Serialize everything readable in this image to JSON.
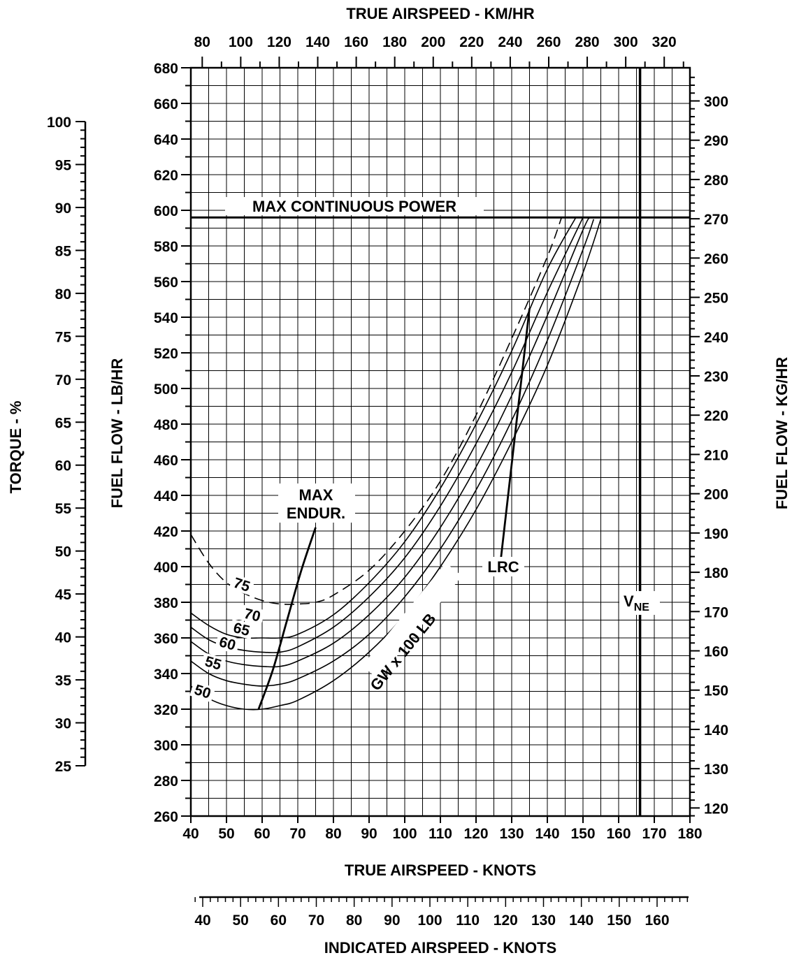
{
  "chart_data": {
    "type": "line",
    "title": "",
    "xlabel": "TRUE AIRSPEED - KNOTS",
    "ylabel": "FUEL FLOW - LB/HR",
    "xlim": [
      40,
      180
    ],
    "ylim": [
      260,
      680
    ],
    "grid": true,
    "x_ticks": [
      40,
      50,
      60,
      70,
      80,
      90,
      100,
      110,
      120,
      130,
      140,
      150,
      160,
      170,
      180
    ],
    "y_ticks": [
      260,
      280,
      300,
      320,
      340,
      360,
      380,
      400,
      420,
      440,
      460,
      480,
      500,
      520,
      540,
      560,
      580,
      600,
      620,
      640,
      660,
      680
    ],
    "top_axis": {
      "label": "TRUE AIRSPEED - KM/HR",
      "ticks": [
        80,
        100,
        120,
        140,
        160,
        180,
        200,
        220,
        240,
        260,
        280,
        300,
        320
      ]
    },
    "right_axis": {
      "label": "FUEL FLOW - KG/HR",
      "ticks": [
        120,
        130,
        140,
        150,
        160,
        170,
        180,
        190,
        200,
        210,
        220,
        230,
        240,
        250,
        260,
        270,
        280,
        290,
        300
      ]
    },
    "left_axis": {
      "label": "TORQUE - %",
      "ticks": [
        25,
        30,
        35,
        40,
        45,
        50,
        55,
        60,
        65,
        70,
        75,
        80,
        85,
        90,
        95,
        100
      ]
    },
    "bottom_axis": {
      "label": "INDICATED AIRSPEED - KNOTS",
      "ticks": [
        40,
        50,
        60,
        70,
        80,
        90,
        100,
        110,
        120,
        130,
        140,
        150,
        160
      ]
    },
    "series": [
      {
        "name": "50",
        "style": "solid",
        "x": [
          40,
          45,
          50,
          55,
          60,
          65,
          70,
          80,
          90,
          100,
          110,
          120,
          130,
          140,
          150,
          155
        ],
        "y": [
          333,
          326,
          322,
          320,
          320,
          322,
          325,
          336,
          352,
          373,
          400,
          432,
          470,
          513,
          565,
          595
        ]
      },
      {
        "name": "55",
        "style": "solid",
        "x": [
          40,
          45,
          50,
          55,
          60,
          65,
          70,
          80,
          90,
          100,
          110,
          120,
          130,
          140,
          150,
          153
        ],
        "y": [
          347,
          340,
          336,
          334,
          333,
          334,
          337,
          347,
          362,
          383,
          410,
          443,
          482,
          527,
          578,
          595
        ]
      },
      {
        "name": "60",
        "style": "solid",
        "x": [
          40,
          45,
          50,
          55,
          60,
          65,
          70,
          80,
          90,
          100,
          110,
          120,
          130,
          140,
          150,
          152
        ],
        "y": [
          358,
          351,
          347,
          345,
          344,
          344,
          347,
          357,
          373,
          394,
          422,
          456,
          496,
          541,
          589,
          596
        ]
      },
      {
        "name": "65",
        "style": "solid",
        "x": [
          40,
          45,
          50,
          55,
          60,
          65,
          70,
          80,
          90,
          100,
          110,
          120,
          130,
          140,
          150
        ],
        "y": [
          366,
          359,
          355,
          353,
          352,
          352,
          355,
          366,
          383,
          405,
          434,
          469,
          509,
          554,
          596
        ]
      },
      {
        "name": "70",
        "style": "solid",
        "x": [
          40,
          45,
          50,
          55,
          60,
          65,
          70,
          80,
          90,
          100,
          110,
          120,
          130,
          140,
          148
        ],
        "y": [
          374,
          367,
          362,
          360,
          360,
          360,
          362,
          373,
          391,
          414,
          444,
          480,
          521,
          567,
          596
        ]
      },
      {
        "name": "75",
        "style": "dashed",
        "x": [
          40,
          45,
          50,
          55,
          60,
          65,
          70,
          75,
          80,
          90,
          100,
          110,
          120,
          130,
          140,
          144
        ],
        "y": [
          418,
          402,
          391,
          385,
          381,
          379,
          379,
          380,
          384,
          398,
          420,
          448,
          485,
          528,
          574,
          596
        ]
      }
    ],
    "reference_lines": [
      {
        "label": "MAX CONTINUOUS POWER",
        "orientation": "horizontal",
        "y": 596
      },
      {
        "label": "V",
        "label_sub": "NE",
        "orientation": "vertical",
        "x": 166
      }
    ],
    "trend_lines": [
      {
        "label": "MAX ENDUR.",
        "x": [
          59,
          63,
          67,
          71,
          75
        ],
        "y": [
          320,
          342,
          370,
          398,
          422
        ]
      },
      {
        "label": "LRC",
        "x": [
          127,
          135
        ],
        "y": [
          405,
          545
        ]
      }
    ],
    "annotations": {
      "gw_label": "GW x 100 LB"
    }
  }
}
